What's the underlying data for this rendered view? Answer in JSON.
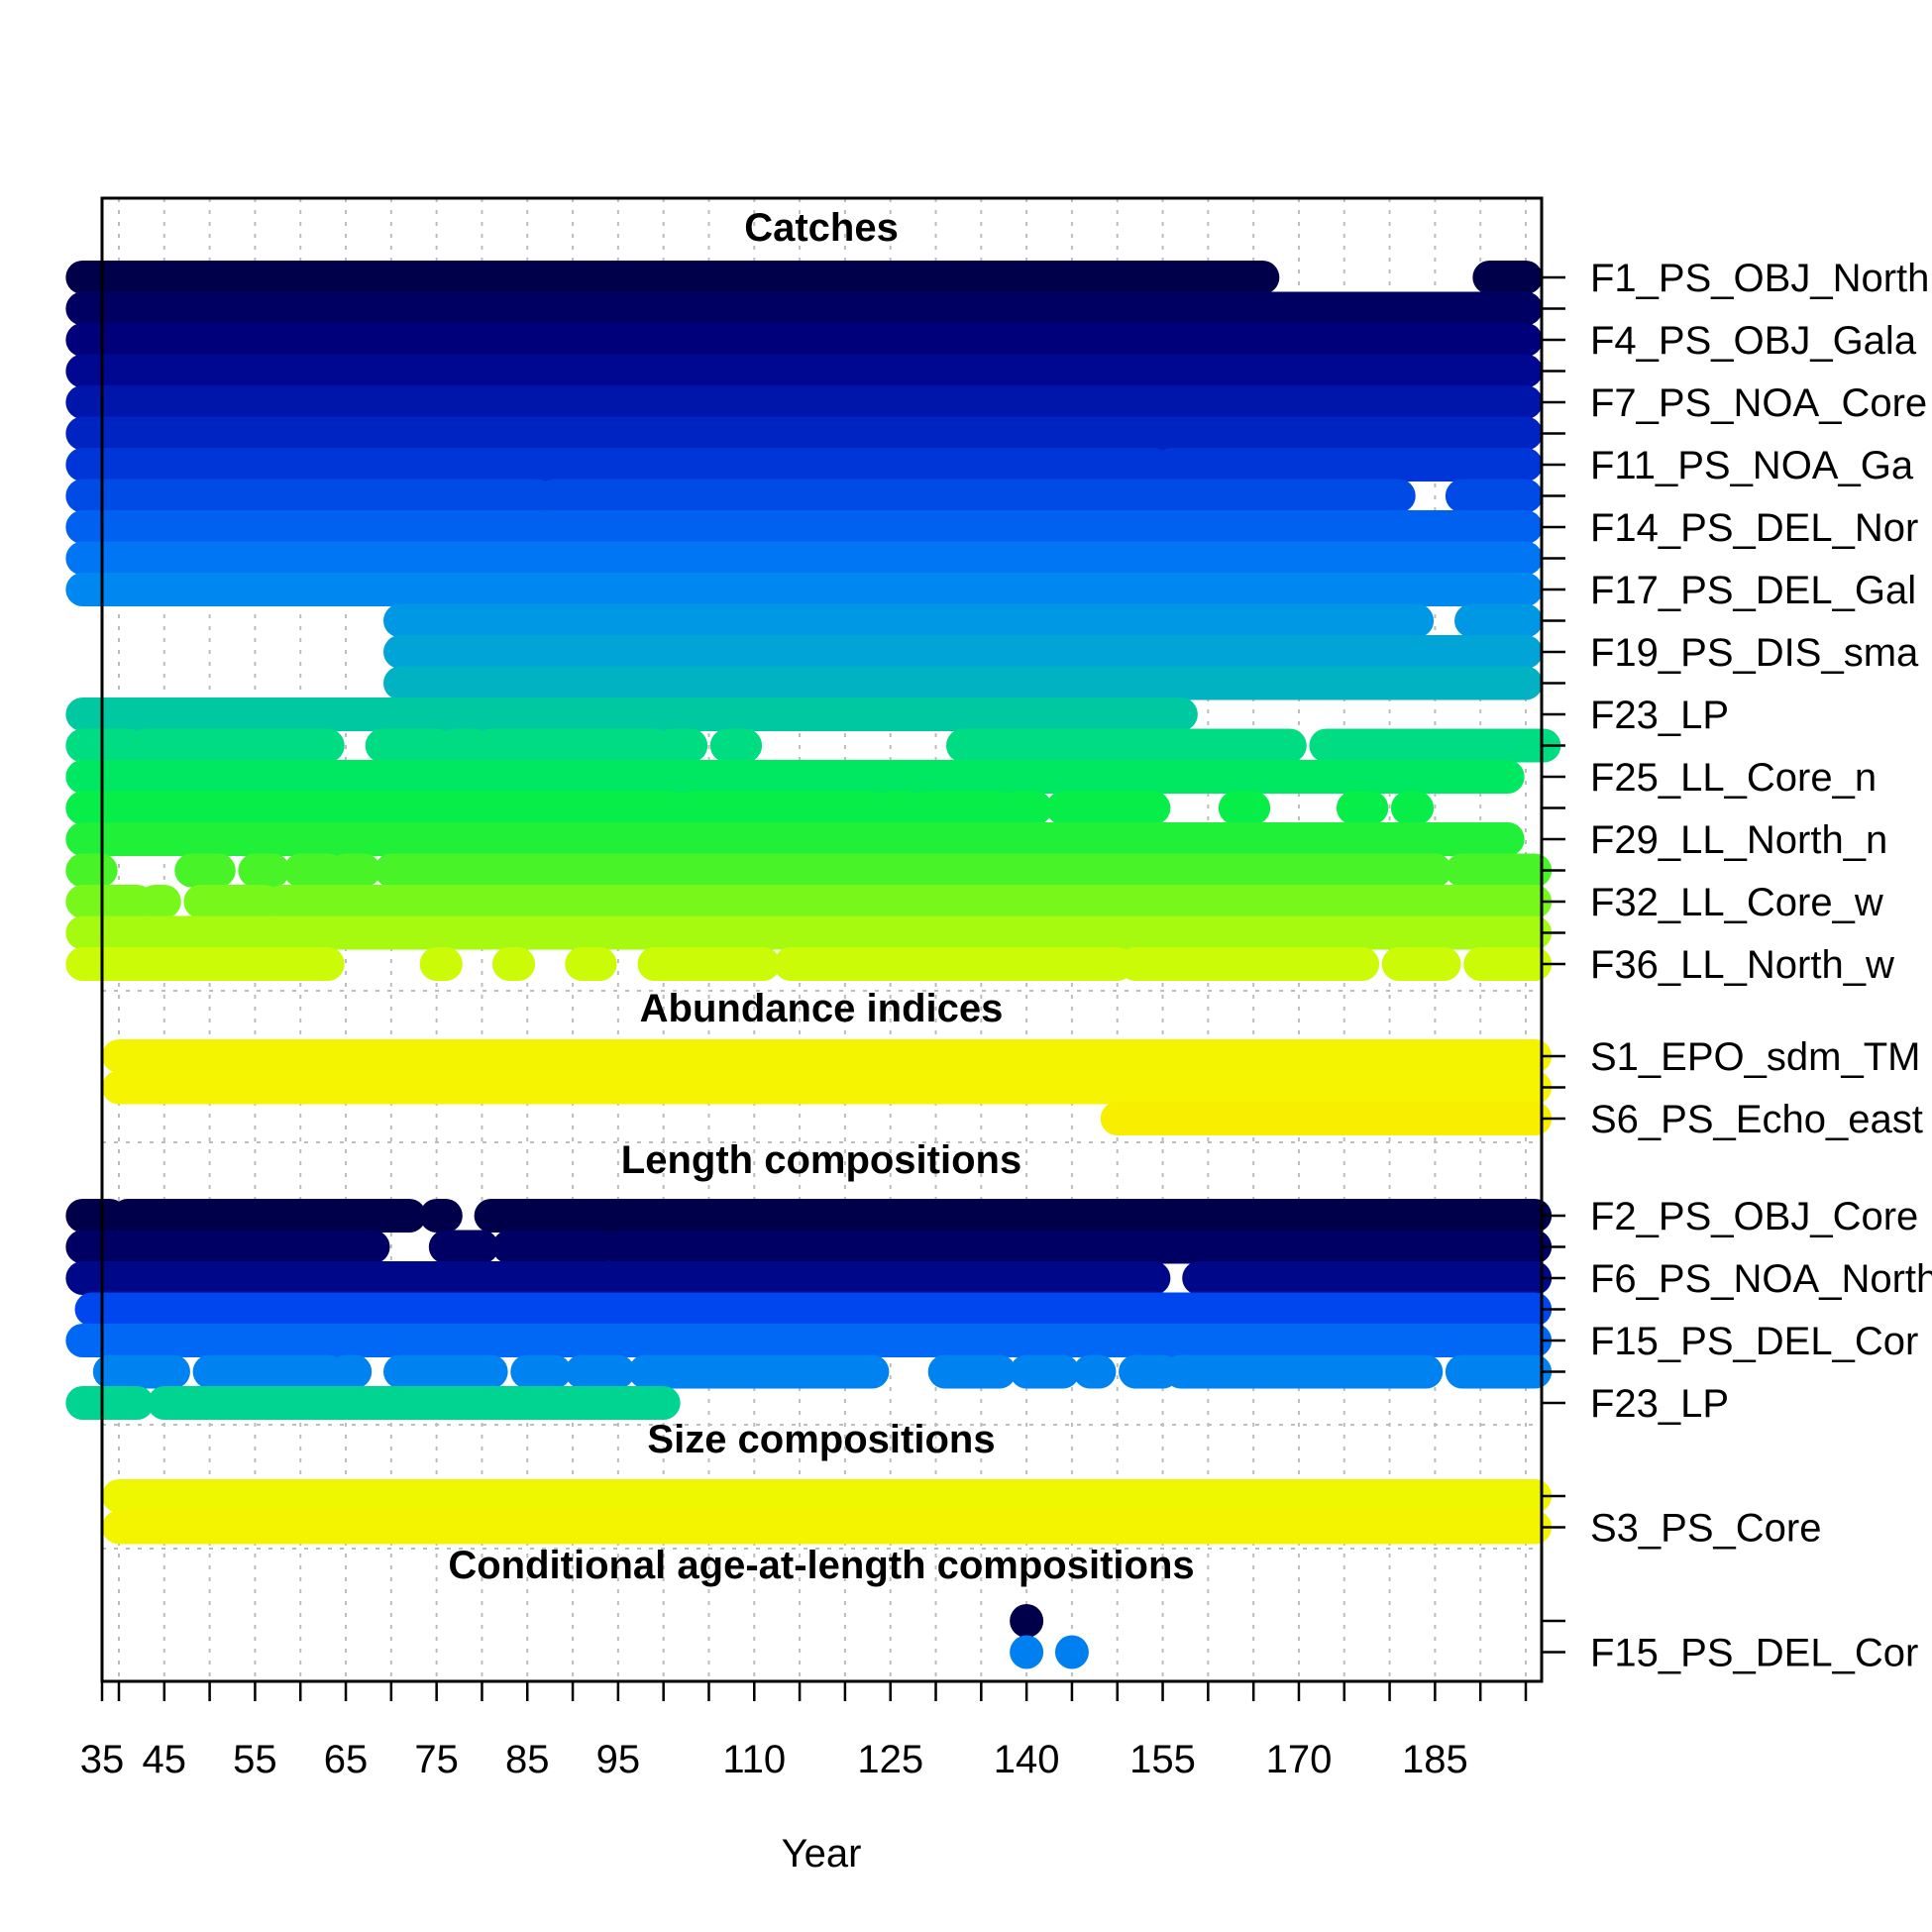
{
  "chart_data": {
    "type": "scatter",
    "xlabel": "Year",
    "xlim": [
      35,
      196
    ],
    "x_ticks": [
      35,
      45,
      55,
      65,
      75,
      85,
      95,
      110,
      125,
      140,
      155,
      170,
      185
    ],
    "x_minor_ticks": [
      40,
      50,
      60,
      70,
      80,
      90,
      100,
      105,
      115,
      120,
      130,
      135,
      145,
      150,
      160,
      165,
      175,
      180,
      190,
      195
    ],
    "x_grid": [
      40,
      45,
      50,
      55,
      60,
      65,
      70,
      75,
      80,
      85,
      90,
      95,
      100,
      105,
      110,
      115,
      120,
      125,
      130,
      135,
      140,
      145,
      150,
      155,
      160,
      165,
      170,
      175,
      180,
      185,
      190,
      195
    ],
    "grid": true,
    "sections": [
      {
        "title": "Catches",
        "labels": [
          {
            "row": 0,
            "text": "F1_PS_OBJ_North"
          },
          {
            "row": 2,
            "text": "F4_PS_OBJ_Gala"
          },
          {
            "row": 4,
            "text": "F7_PS_NOA_Core"
          },
          {
            "row": 6,
            "text": "F11_PS_NOA_Ga"
          },
          {
            "row": 8,
            "text": "F14_PS_DEL_Nor"
          },
          {
            "row": 10,
            "text": "F17_PS_DEL_Gal"
          },
          {
            "row": 12,
            "text": "F19_PS_DIS_sma"
          },
          {
            "row": 14,
            "text": "F23_LP"
          },
          {
            "row": 16,
            "text": "F25_LL_Core_n"
          },
          {
            "row": 18,
            "text": "F29_LL_North_n"
          },
          {
            "row": 20,
            "text": "F32_LL_Core_w"
          },
          {
            "row": 22,
            "text": "F36_LL_North_w"
          }
        ],
        "series": [
          {
            "color": "#00004a",
            "ranges": [
              [
                36,
                166
              ],
              [
                191,
                195
              ]
            ]
          },
          {
            "color": "#000062",
            "ranges": [
              [
                36,
                195
              ]
            ]
          },
          {
            "color": "#00007a",
            "ranges": [
              [
                36,
                195
              ]
            ]
          },
          {
            "color": "#000892",
            "ranges": [
              [
                36,
                195
              ]
            ]
          },
          {
            "color": "#0016aa",
            "ranges": [
              [
                36,
                195
              ]
            ]
          },
          {
            "color": "#0024c2",
            "ranges": [
              [
                36,
                195
              ]
            ]
          },
          {
            "color": "#0036d8",
            "ranges": [
              [
                36,
                154
              ],
              [
                156,
                195
              ]
            ]
          },
          {
            "color": "#004ae6",
            "ranges": [
              [
                36,
                86
              ],
              [
                88,
                181
              ],
              [
                188,
                195
              ]
            ]
          },
          {
            "color": "#0060f0",
            "ranges": [
              [
                36,
                195
              ]
            ]
          },
          {
            "color": "#0076f4",
            "ranges": [
              [
                36,
                195
              ]
            ]
          },
          {
            "color": "#0088f0",
            "ranges": [
              [
                36,
                195
              ]
            ]
          },
          {
            "color": "#0098e4",
            "ranges": [
              [
                71,
                183
              ],
              [
                189,
                195
              ]
            ]
          },
          {
            "color": "#00a4d6",
            "ranges": [
              [
                71,
                195
              ]
            ]
          },
          {
            "color": "#00b2c2",
            "ranges": [
              [
                71,
                195
              ]
            ]
          },
          {
            "color": "#00c8a0",
            "ranges": [
              [
                36,
                157
              ]
            ]
          },
          {
            "color": "#00dc82",
            "ranges": [
              [
                36,
                41
              ],
              [
                43,
                63
              ],
              [
                69,
                75
              ],
              [
                77,
                79
              ],
              [
                81,
                99
              ],
              [
                101,
                103
              ],
              [
                107,
                109
              ],
              [
                133,
                169
              ],
              [
                173,
                197
              ]
            ]
          },
          {
            "color": "#00e862",
            "ranges": [
              [
                36,
                193
              ]
            ]
          },
          {
            "color": "#08ee48",
            "ranges": [
              [
                36,
                101
              ],
              [
                103,
                123
              ],
              [
                125,
                127
              ],
              [
                129,
                137
              ],
              [
                139,
                141
              ],
              [
                144,
                154
              ],
              [
                163,
                165
              ],
              [
                176,
                178
              ],
              [
                182,
                183
              ]
            ]
          },
          {
            "color": "#20f038",
            "ranges": [
              [
                36,
                193
              ]
            ]
          },
          {
            "color": "#48f428",
            "ranges": [
              [
                36,
                38
              ],
              [
                48,
                51
              ],
              [
                55,
                57
              ],
              [
                60,
                63
              ],
              [
                65,
                67
              ],
              [
                70,
                185
              ],
              [
                188,
                196
              ]
            ]
          },
          {
            "color": "#78f81a",
            "ranges": [
              [
                36,
                42
              ],
              [
                44,
                45
              ],
              [
                49,
                56
              ],
              [
                58,
                196
              ]
            ]
          },
          {
            "color": "#a6fa10",
            "ranges": [
              [
                36,
                196
              ]
            ]
          },
          {
            "color": "#ccfb08",
            "ranges": [
              [
                36,
                63
              ],
              [
                75,
                76
              ],
              [
                83,
                84
              ],
              [
                91,
                93
              ],
              [
                99,
                111
              ],
              [
                114,
                150
              ],
              [
                152,
                177
              ],
              [
                181,
                186
              ],
              [
                190,
                196
              ]
            ]
          }
        ]
      },
      {
        "title": "Abundance indices",
        "labels": [
          {
            "row": 0,
            "text": "S1_EPO_sdm_TM"
          },
          {
            "row": 2,
            "text": "S6_PS_Echo_east"
          }
        ],
        "series": [
          {
            "color": "#f4f400",
            "ranges": [
              [
                40,
                196
              ]
            ]
          },
          {
            "color": "#f6f400",
            "ranges": [
              [
                40,
                196
              ]
            ]
          },
          {
            "color": "#f8ee00",
            "ranges": [
              [
                150,
                196
              ]
            ]
          }
        ]
      },
      {
        "title": "Length compositions",
        "labels": [
          {
            "row": 0,
            "text": "F2_PS_OBJ_Core"
          },
          {
            "row": 2,
            "text": "F6_PS_NOA_North"
          },
          {
            "row": 4,
            "text": "F15_PS_DEL_Cor"
          },
          {
            "row": 6,
            "text": "F23_LP"
          }
        ],
        "series": [
          {
            "color": "#00004a",
            "ranges": [
              [
                36,
                39
              ],
              [
                41,
                72
              ],
              [
                75,
                76
              ],
              [
                81,
                196
              ]
            ]
          },
          {
            "color": "#000064",
            "ranges": [
              [
                36,
                68
              ],
              [
                76,
                80
              ],
              [
                83,
                93
              ],
              [
                95,
                196
              ]
            ]
          },
          {
            "color": "#00088a",
            "ranges": [
              [
                36,
                154
              ],
              [
                159,
                196
              ]
            ]
          },
          {
            "color": "#0046ee",
            "ranges": [
              [
                37,
                196
              ]
            ]
          },
          {
            "color": "#0068f4",
            "ranges": [
              [
                36,
                196
              ]
            ]
          },
          {
            "color": "#0082f0",
            "ranges": [
              [
                39,
                46
              ],
              [
                50,
                63
              ],
              [
                65,
                66
              ],
              [
                71,
                81
              ],
              [
                85,
                88
              ],
              [
                91,
                95
              ],
              [
                98,
                123
              ],
              [
                131,
                137
              ],
              [
                140,
                144
              ],
              [
                147,
                148
              ],
              [
                152,
                155
              ],
              [
                157,
                184
              ],
              [
                188,
                196
              ]
            ]
          },
          {
            "color": "#00d490",
            "ranges": [
              [
                36,
                42
              ],
              [
                45,
                100
              ]
            ]
          }
        ]
      },
      {
        "title": "Size compositions",
        "labels": [
          {
            "row": 1,
            "text": "S3_PS_Core"
          }
        ],
        "series": [
          {
            "color": "#eef600",
            "ranges": [
              [
                40,
                196
              ]
            ]
          },
          {
            "color": "#f4f400",
            "ranges": [
              [
                40,
                196
              ]
            ]
          }
        ]
      },
      {
        "title": "Conditional age-at-length compositions",
        "labels": [
          {
            "row": 1,
            "text": "F15_PS_DEL_Cor"
          }
        ],
        "series": [
          {
            "color": "#00004a",
            "ranges": [
              [
                140,
                140
              ]
            ]
          },
          {
            "color": "#0080f0",
            "ranges": [
              [
                140,
                140
              ],
              [
                145,
                145
              ]
            ]
          }
        ]
      }
    ]
  }
}
